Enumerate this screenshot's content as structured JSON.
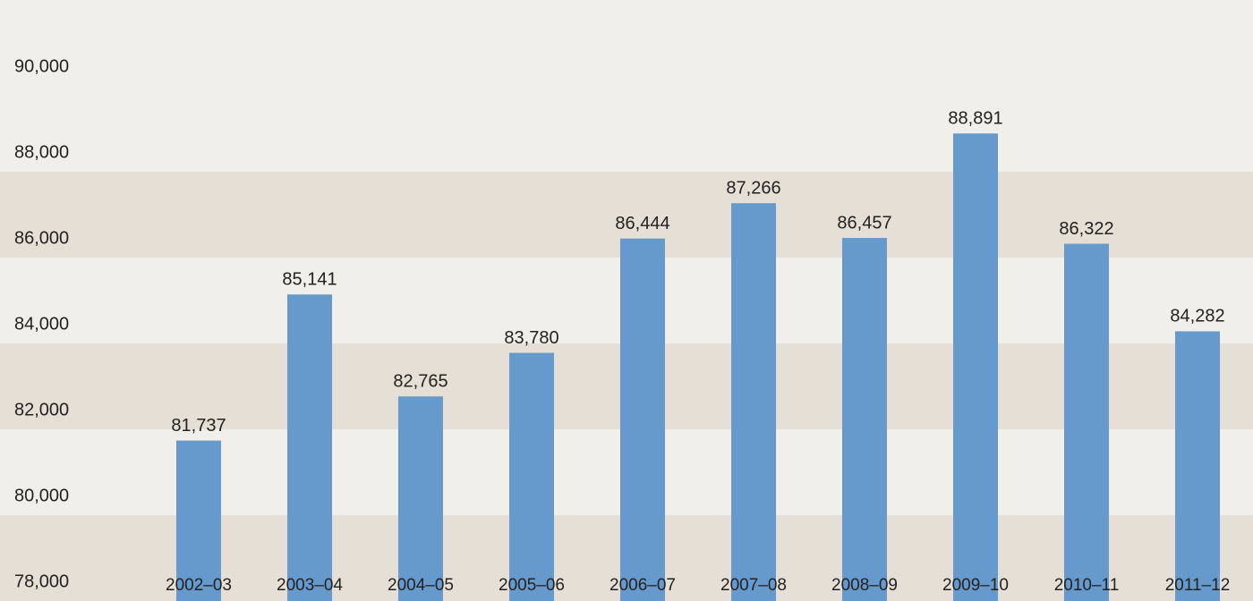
{
  "chart_data": {
    "type": "bar",
    "categories": [
      "2002–03",
      "2003–04",
      "2004–05",
      "2005–06",
      "2006–07",
      "2007–08",
      "2008–09",
      "2009–10",
      "2010–11",
      "2011–12"
    ],
    "values": [
      81737,
      85141,
      82765,
      83780,
      86444,
      87266,
      86457,
      88891,
      86322,
      84282
    ],
    "value_labels": [
      "81,737",
      "85,141",
      "82,765",
      "83,780",
      "86,444",
      "87,266",
      "86,457",
      "88,891",
      "86,322",
      "84,282"
    ],
    "color": "#6699cc",
    "ylim": [
      78000,
      92000
    ],
    "yticks": [
      {
        "value": 78000,
        "label": "78,000"
      },
      {
        "value": 80000,
        "label": "80,000"
      },
      {
        "value": 82000,
        "label": "82,000"
      },
      {
        "value": 84000,
        "label": "84,000"
      },
      {
        "value": 86000,
        "label": "86,000"
      },
      {
        "value": 88000,
        "label": "88,000"
      },
      {
        "value": 90000,
        "label": "90,000"
      }
    ],
    "band_colors": [
      "#e6dfd5",
      "#f1efe9"
    ]
  }
}
